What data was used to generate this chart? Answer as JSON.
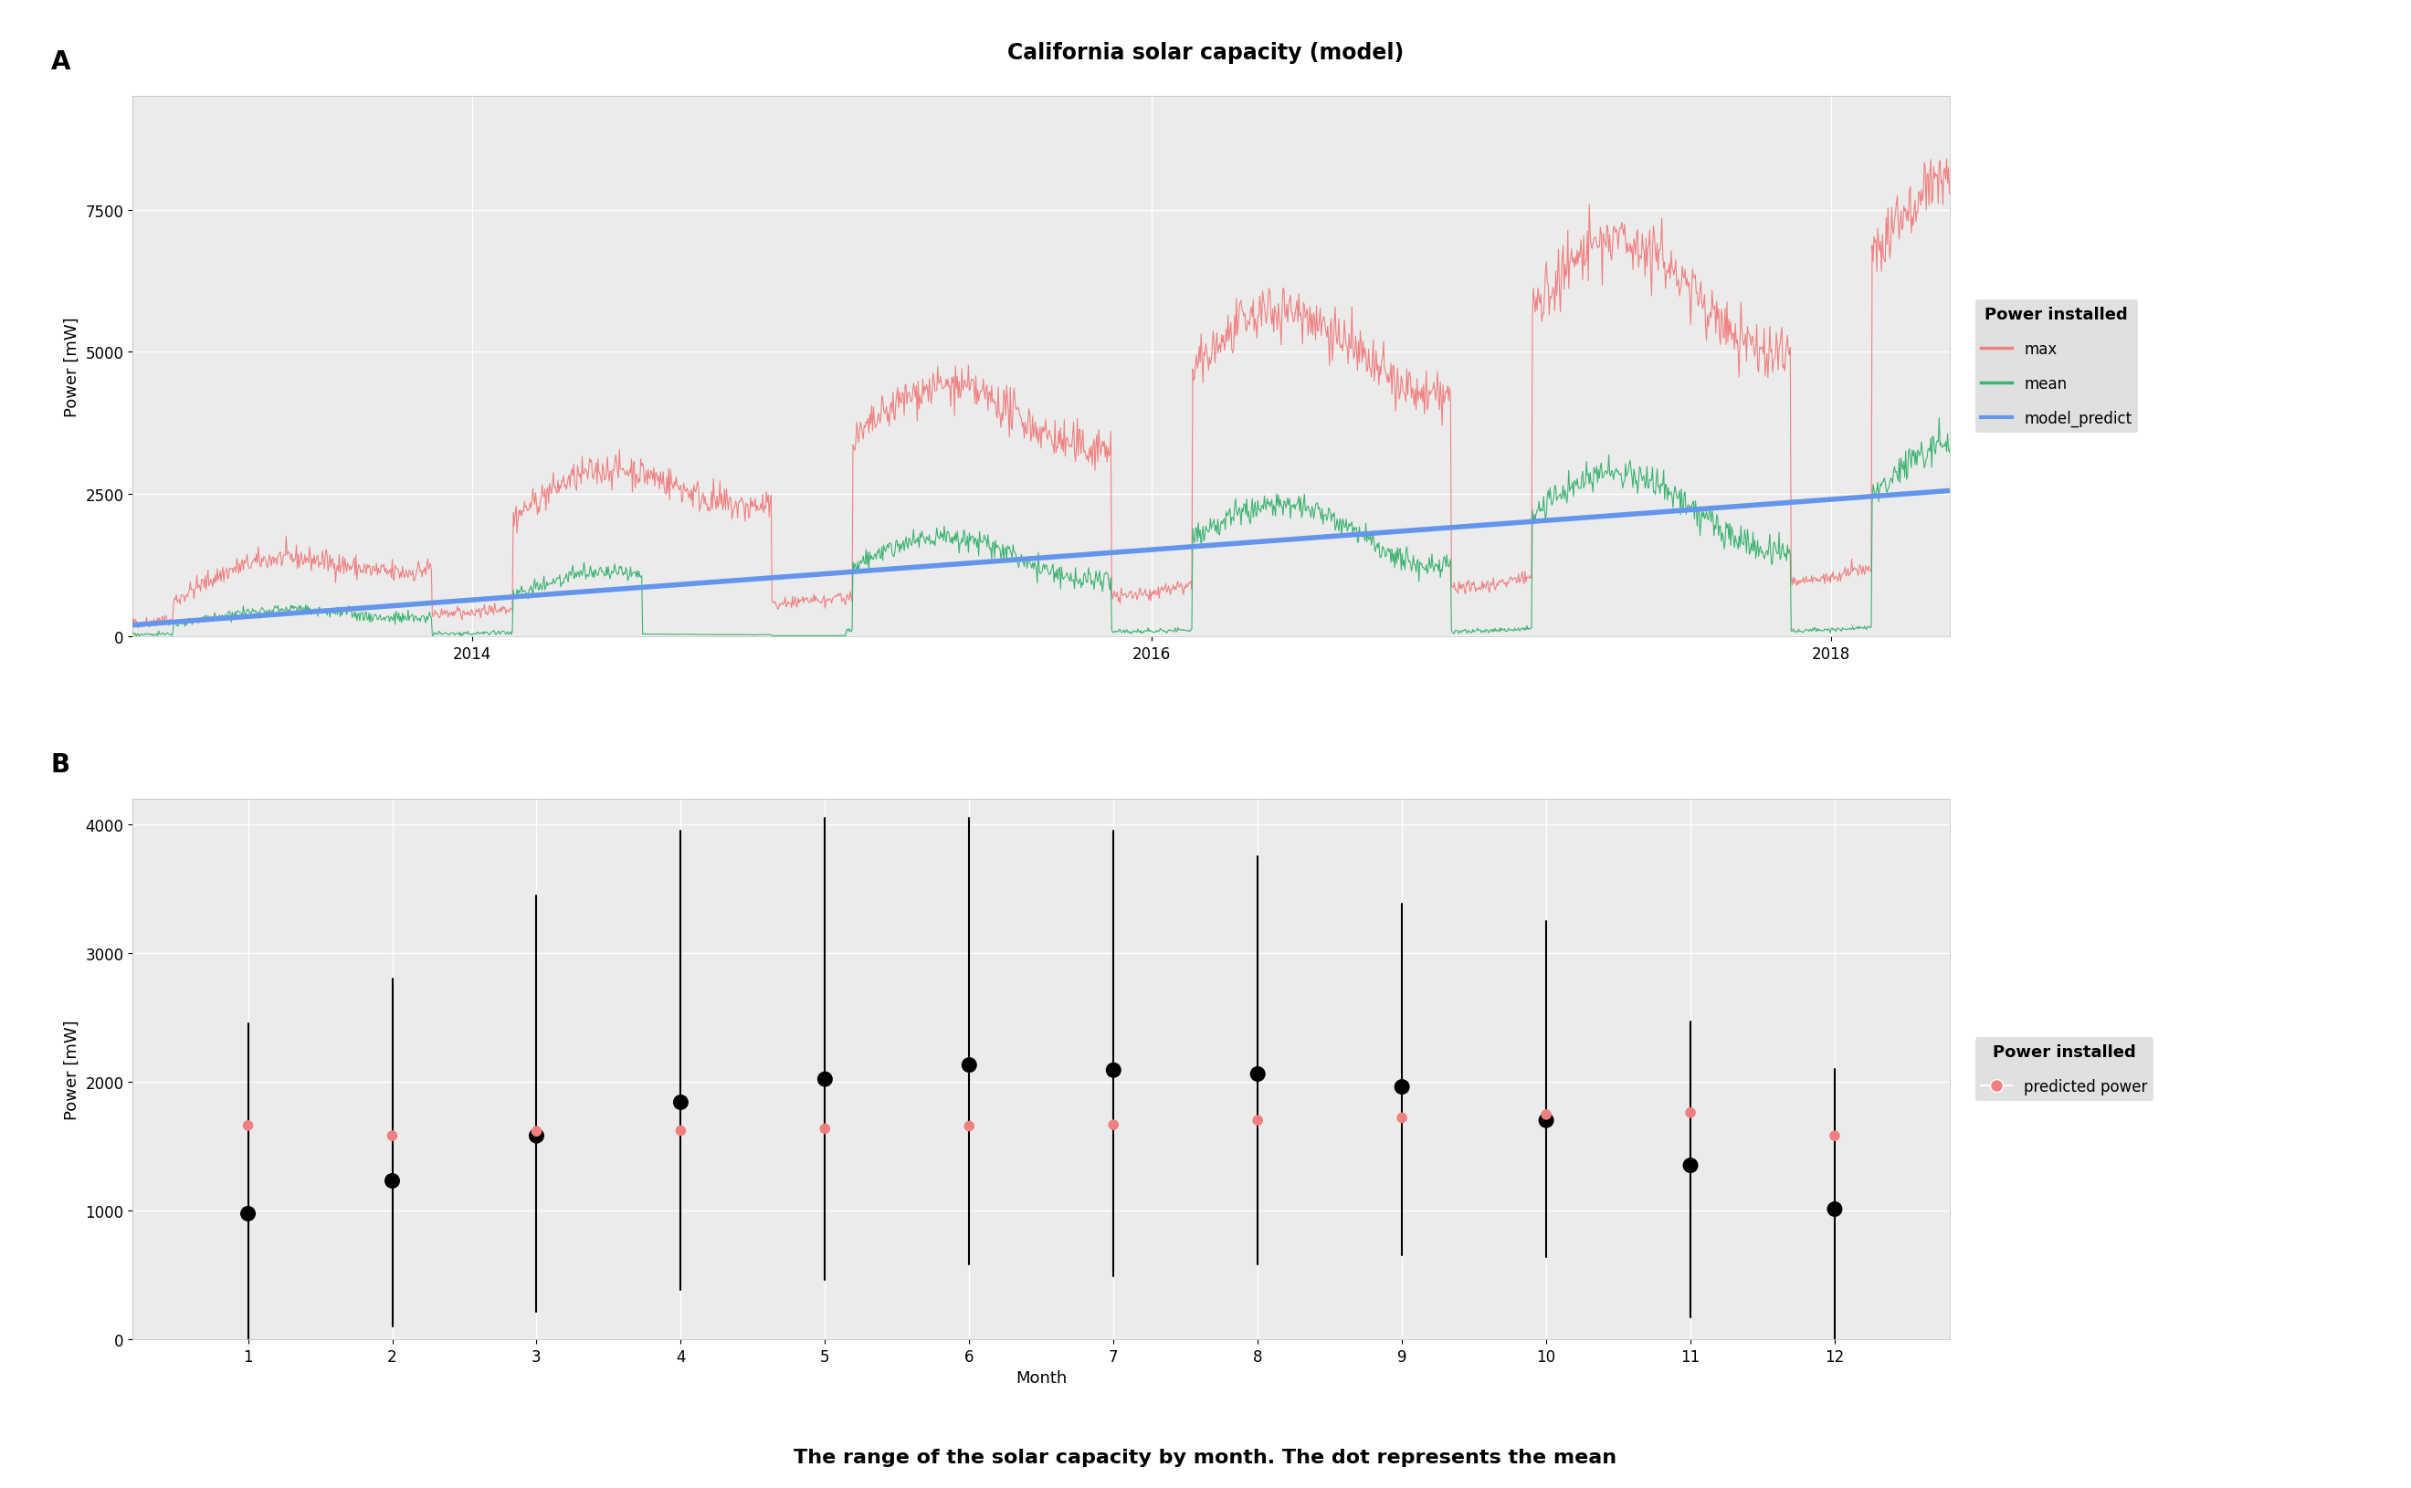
{
  "title": "California solar capacity (model)",
  "title_fontsize": 17,
  "title_fontweight": "bold",
  "panel_a_label": "A",
  "panel_b_label": "B",
  "panel_a": {
    "ylabel": "Power [mW]",
    "ylim": [
      0,
      9500
    ],
    "yticks": [
      0,
      2500,
      5000,
      7500
    ],
    "max_color": "#F08080",
    "mean_color": "#3CB371",
    "predict_color": "#6495ED",
    "predict_linewidth": 4.0,
    "max_linewidth": 0.8,
    "mean_linewidth": 0.8,
    "legend_title": "Power installed",
    "legend_labels": [
      "max",
      "mean",
      "model_predict"
    ]
  },
  "panel_b": {
    "ylabel": "Power [mW]",
    "xlabel": "Month",
    "ylim": [
      0,
      4200
    ],
    "yticks": [
      0,
      1000,
      2000,
      3000,
      4000
    ],
    "xticks": [
      1,
      2,
      3,
      4,
      5,
      6,
      7,
      8,
      9,
      10,
      11,
      12
    ],
    "mean_dot_color": "#000000",
    "mean_dot_size": 150,
    "predict_dot_color": "#F08080",
    "predict_dot_size": 70,
    "error_bar_color": "#000000",
    "error_bar_linewidth": 1.5,
    "legend_title": "Power installed",
    "legend_label": "predicted power",
    "months": [
      1,
      2,
      3,
      4,
      5,
      6,
      7,
      8,
      9,
      10,
      11,
      12
    ],
    "mean_values": [
      975,
      1230,
      1580,
      1840,
      2020,
      2130,
      2090,
      2060,
      1960,
      1700,
      1350,
      1010
    ],
    "lower_values": [
      0,
      100,
      210,
      380,
      460,
      580,
      490,
      580,
      650,
      640,
      170,
      0
    ],
    "upper_values": [
      2450,
      2800,
      3450,
      3950,
      4050,
      4050,
      3950,
      3750,
      3380,
      3250,
      2470,
      2100
    ],
    "predicted_values": [
      1660,
      1580,
      1615,
      1620,
      1635,
      1655,
      1665,
      1700,
      1720,
      1745,
      1760,
      1580
    ]
  },
  "subtitle": "The range of the solar capacity by month. The dot represents the mean",
  "subtitle_fontsize": 16,
  "subtitle_fontweight": "bold",
  "background_color": "#FFFFFF",
  "panel_bg_color": "#EBEBEB",
  "grid_color": "#FFFFFF",
  "grid_linewidth": 1.0,
  "legend_bg_color": "#D9D9D9"
}
